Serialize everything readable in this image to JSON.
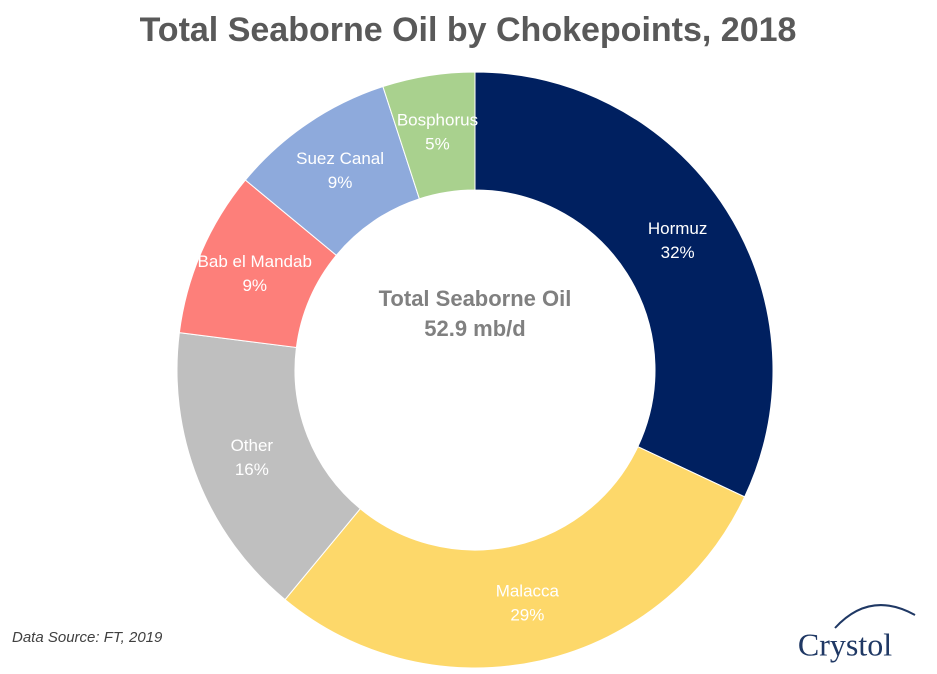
{
  "chart_data": {
    "type": "donut",
    "title": "Total Seaborne Oil by Chokepoints, 2018",
    "center_text": [
      "Total Seaborne Oil",
      "52.9 mb/d"
    ],
    "categories": [
      "Hormuz",
      "Malacca",
      "Other",
      "Bab el Mandab",
      "Suez Canal",
      "Bosphorus"
    ],
    "values": [
      32,
      29,
      16,
      9,
      9,
      5
    ],
    "value_labels": [
      "32%",
      "29%",
      "16%",
      "9%",
      "9%",
      "5%"
    ],
    "colors": [
      "#002060",
      "#fdd86a",
      "#bfbfbf",
      "#fd7f7a",
      "#8eaadc",
      "#a9d18e"
    ],
    "source": "Data Source: FT, 2019",
    "logo": "Crystol"
  }
}
